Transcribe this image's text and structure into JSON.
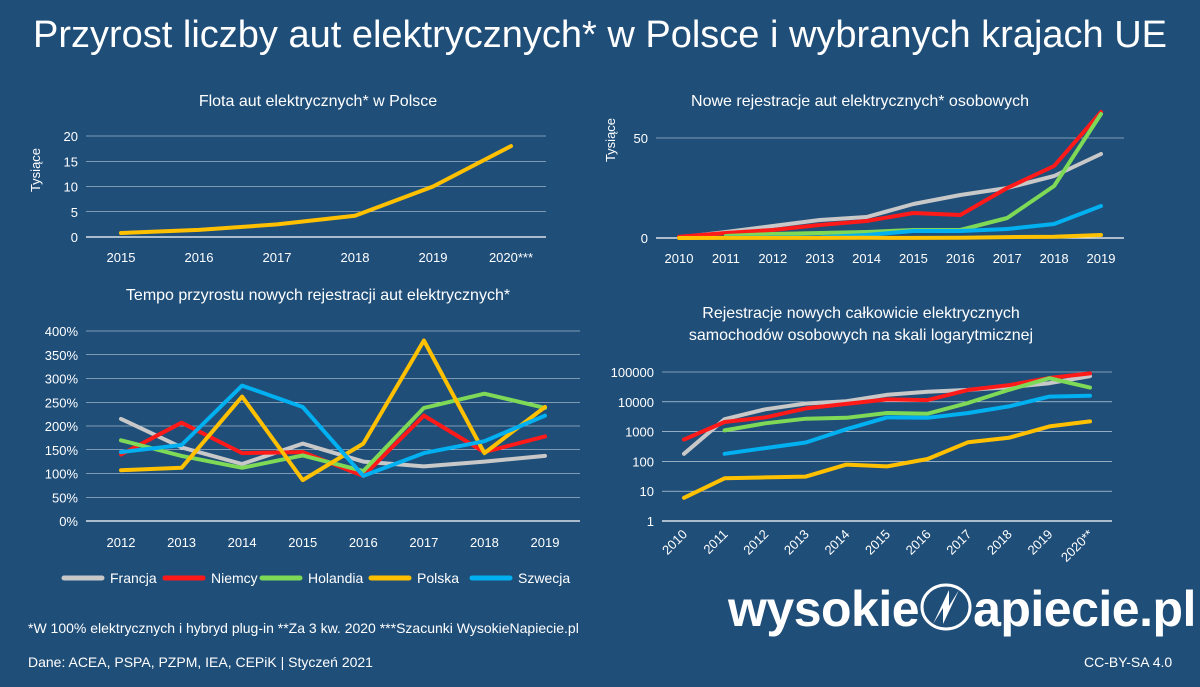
{
  "title": "Przyrost liczby aut elektrycznych* w Polsce i wybranych krajach UE",
  "colors": {
    "background": "#1f4e79",
    "Francja": "#c8c8c8",
    "Niemcy": "#ff1a1a",
    "Holandia": "#7ed957",
    "Polska": "#ffc000",
    "Szwecja": "#00b0f0"
  },
  "legend": [
    "Francja",
    "Niemcy",
    "Holandia",
    "Polska",
    "Szwecja"
  ],
  "footnote": "*W 100% elektrycznych i hybryd plug-in   **Za 3 kw. 2020   ***Szacunki WysokieNapiecie.pl",
  "source": "Dane: ACEA, PSPA, PZPM, IEA, CEPiK |  Styczeń 2021",
  "license": "CC-BY-SA 4.0",
  "logo": {
    "part1": "wysokie",
    "part2": "apiecie.pl",
    "icon": "lightning-bolt-icon"
  },
  "chart_data": [
    {
      "id": "fleet",
      "type": "line",
      "title": "Flota aut elektrycznych* w Polsce",
      "ylabel": "Tysiące",
      "xlabel": "",
      "categories": [
        "2015",
        "2016",
        "2017",
        "2018",
        "2019",
        "2020***"
      ],
      "ylim": [
        0,
        20
      ],
      "yticks": [
        0,
        5,
        10,
        15,
        20
      ],
      "series": [
        {
          "name": "Polska",
          "values": [
            0.8,
            1.4,
            2.5,
            4.2,
            10.0,
            18.0
          ]
        }
      ]
    },
    {
      "id": "registrations",
      "type": "line",
      "title": "Nowe rejestracje aut elektrycznych* osobowych",
      "ylabel": "Tysiące",
      "xlabel": "",
      "categories": [
        "2010",
        "2011",
        "2012",
        "2013",
        "2014",
        "2015",
        "2016",
        "2017",
        "2018",
        "2019"
      ],
      "ylim": [
        0,
        60
      ],
      "yticks": [
        0,
        50
      ],
      "series": [
        {
          "name": "Francja",
          "values": [
            0.2,
            3,
            6,
            9,
            10.5,
            17,
            21.5,
            25,
            31,
            42
          ]
        },
        {
          "name": "Niemcy",
          "values": [
            0.6,
            2.5,
            4,
            6.5,
            8.5,
            12.5,
            11.5,
            25,
            36,
            63
          ]
        },
        {
          "name": "Holandia",
          "values": [
            null,
            1,
            2,
            2.5,
            3,
            4,
            4,
            10,
            26,
            62
          ]
        },
        {
          "name": "Szwecja",
          "values": [
            null,
            0.2,
            0.3,
            0.4,
            1.5,
            3.5,
            3.5,
            4.5,
            7,
            16
          ]
        },
        {
          "name": "Polska",
          "values": [
            0.01,
            0.03,
            0.03,
            0.03,
            0.08,
            0.07,
            0.12,
            0.45,
            0.6,
            1.5
          ]
        }
      ]
    },
    {
      "id": "growth",
      "type": "line",
      "title": "Tempo przyrostu nowych rejestracji aut elektrycznych*",
      "xlabel": "",
      "ylabel": "",
      "categories": [
        "2012",
        "2013",
        "2014",
        "2015",
        "2016",
        "2017",
        "2018",
        "2019"
      ],
      "ylim": [
        0,
        400
      ],
      "yticks": [
        "0%",
        "50%",
        "100%",
        "150%",
        "200%",
        "250%",
        "300%",
        "350%",
        "400%"
      ],
      "series": [
        {
          "name": "Francja",
          "values": [
            215,
            155,
            120,
            163,
            125,
            115,
            125,
            137
          ]
        },
        {
          "name": "Niemcy",
          "values": [
            140,
            207,
            143,
            145,
            95,
            222,
            145,
            178
          ]
        },
        {
          "name": "Holandia",
          "values": [
            170,
            137,
            112,
            138,
            105,
            238,
            268,
            238
          ]
        },
        {
          "name": "Polska",
          "values": [
            107,
            112,
            262,
            86,
            163,
            380,
            143,
            240
          ]
        },
        {
          "name": "Szwecja",
          "values": [
            145,
            160,
            285,
            240,
            95,
            143,
            168,
            222
          ]
        }
      ]
    },
    {
      "id": "logscale",
      "type": "line",
      "title": "Rejestracje nowych całkowicie elektrycznych samochodów osobowych na skali logarytmicznej",
      "title_lines": [
        "Rejestracje nowych całkowicie elektrycznych",
        "samochodów osobowych na skali logarytmicznej"
      ],
      "xlabel": "",
      "ylabel": "",
      "yscale": "log",
      "categories": [
        "2010",
        "2011",
        "2012",
        "2013",
        "2014",
        "2015",
        "2016",
        "2017",
        "2018",
        "2019",
        "2020**"
      ],
      "ylim": [
        1,
        100000
      ],
      "yticks": [
        "1",
        "10",
        "100",
        "1000",
        "10000",
        "100000"
      ],
      "series": [
        {
          "name": "Francja",
          "values": [
            180,
            2600,
            5600,
            8800,
            10500,
            17200,
            21800,
            25000,
            31000,
            42000,
            73000
          ]
        },
        {
          "name": "Niemcy",
          "values": [
            540,
            2100,
            3000,
            6000,
            8500,
            12000,
            11400,
            25000,
            36000,
            63000,
            90000
          ]
        },
        {
          "name": "Holandia",
          "values": [
            null,
            1100,
            1900,
            2700,
            2900,
            4200,
            4000,
            9200,
            25000,
            62000,
            30000
          ]
        },
        {
          "name": "Szwecja",
          "values": [
            null,
            180,
            280,
            430,
            1200,
            3000,
            2900,
            4200,
            7000,
            15000,
            16000
          ]
        },
        {
          "name": "Polska",
          "values": [
            6,
            27,
            29,
            31,
            78,
            68,
            120,
            440,
            620,
            1500,
            2200
          ]
        }
      ]
    }
  ]
}
